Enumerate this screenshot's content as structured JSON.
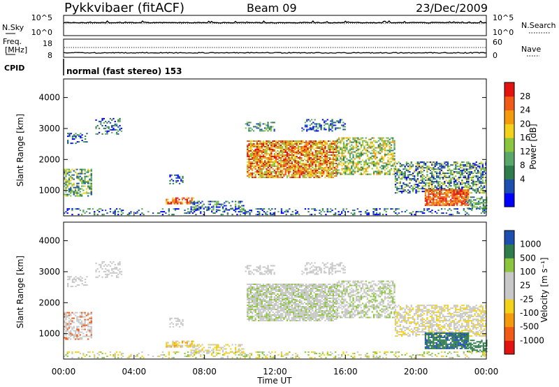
{
  "header": {
    "station": "Pykkvibaer (fitACF)",
    "beam": "Beam 09",
    "date": "23/Dec/2009"
  },
  "nsky_panel": {
    "left_label": "N.Sky",
    "right_label": "N.Search",
    "left_ticks": [
      "10^5",
      "10^0"
    ],
    "right_ticks": [
      "10^5",
      "10^0"
    ]
  },
  "freq_panel": {
    "left_label_1": "Freq.",
    "left_label_2": "[MHz]",
    "right_label": "Nave",
    "left_ticks": [
      "18",
      "8"
    ],
    "right_ticks": [
      "60",
      "0"
    ]
  },
  "cpid_panel": {
    "label": "CPID",
    "text": "normal (fast stereo) 153"
  },
  "chart_data": [
    {
      "type": "heatmap",
      "name": "power",
      "ylabel": "Slant Range [km]",
      "ylim": [
        180,
        4600
      ],
      "y_ticks": [
        1000,
        2000,
        3000,
        4000
      ],
      "xlim": [
        0,
        24
      ],
      "colorbar_label": "Power [dB]",
      "colorbar_ticks": [
        "28",
        "24",
        "20",
        "16",
        "12",
        "8",
        "4"
      ],
      "colorbar_colors": [
        "#0000ff",
        "#1d4fb0",
        "#2e7d4b",
        "#5aa76a",
        "#8cc63f",
        "#f2d21b",
        "#f59a0c",
        "#f25b16",
        "#e3140f"
      ]
    },
    {
      "type": "heatmap",
      "name": "velocity",
      "ylabel": "Slant Range [km]",
      "ylim": [
        180,
        4600
      ],
      "y_ticks": [
        1000,
        2000,
        3000,
        4000
      ],
      "xlim": [
        0,
        24
      ],
      "x_ticks": [
        "00:00",
        "04:00",
        "08:00",
        "12:00",
        "16:00",
        "20:00",
        "00:00"
      ],
      "xlabel": "Time UT",
      "colorbar_label": "Velocity [m s⁻¹]",
      "colorbar_ticks": [
        "1000",
        "500",
        "100",
        "25",
        "-25",
        "-100",
        "-500",
        "-1000"
      ],
      "colorbar_colors": [
        "#e3140f",
        "#f25b16",
        "#f59a0c",
        "#f2d21b",
        "#c8c8c8",
        "#c8c8c8",
        "#8cc63f",
        "#2e7d4b",
        "#1d4fb0"
      ]
    }
  ]
}
